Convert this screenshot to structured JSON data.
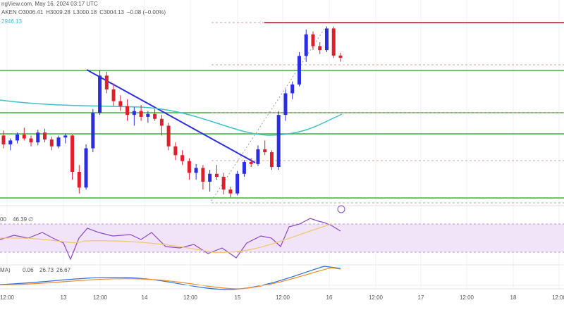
{
  "header": {
    "source": "ngView.com, May 16, 2024 03:17 UTC",
    "symbol": "AKEN",
    "ohlc": [
      "O3006.41",
      "H3009.28",
      "L3000.18",
      "C3004.13",
      "−0.08 (−0.00%)"
    ],
    "ma_label": "2946.13"
  },
  "chart_data": {
    "type": "candlestick",
    "up_color": "#2a2ee0",
    "down_color": "#e01f2a",
    "ylim": [
      2855,
      3063
    ],
    "open": [
      2925,
      2916,
      2920,
      2926,
      2922,
      2918,
      2928,
      2921,
      2914,
      2923,
      2925,
      2888,
      2872,
      2912,
      2948,
      2986,
      2972,
      2960,
      2955,
      2946,
      2950,
      2944,
      2947,
      2942,
      2935,
      2914,
      2905,
      2899,
      2887,
      2892,
      2878,
      2886,
      2883,
      2870,
      2866,
      2886,
      2898,
      2896,
      2911,
      2908,
      2893,
      2946,
      2968,
      2977,
      3006,
      3028,
      3016,
      3012,
      3034,
      3006.41
    ],
    "high": [
      2930,
      2922,
      2928,
      2933,
      2925,
      2931,
      2932,
      2924,
      2925,
      2927,
      2926,
      2895,
      2916,
      2952,
      2991,
      2990,
      2978,
      2966,
      2962,
      2954,
      2956,
      2950,
      2952,
      2946,
      2938,
      2918,
      2910,
      2902,
      2896,
      2895,
      2890,
      2895,
      2887,
      2873,
      2889,
      2900,
      2902,
      2915,
      2920,
      2910,
      2950,
      2972,
      2980,
      3010,
      3033,
      3031,
      3020,
      3036,
      3036,
      3009.28
    ],
    "low": [
      2912,
      2910,
      2917,
      2920,
      2914,
      2915,
      2918,
      2910,
      2912,
      2917,
      2880,
      2866,
      2870,
      2908,
      2946,
      2968,
      2955,
      2950,
      2940,
      2935,
      2940,
      2938,
      2940,
      2925,
      2910,
      2900,
      2895,
      2880,
      2880,
      2870,
      2868,
      2880,
      2865,
      2862,
      2864,
      2883,
      2893,
      2894,
      2905,
      2890,
      2890,
      2940,
      2962,
      2975,
      3000,
      3012,
      3008,
      3010,
      3004,
      3000.18
    ],
    "close": [
      2916,
      2920,
      2926,
      2922,
      2918,
      2928,
      2921,
      2914,
      2923,
      2925,
      2888,
      2872,
      2912,
      2948,
      2986,
      2972,
      2960,
      2955,
      2946,
      2950,
      2944,
      2947,
      2942,
      2935,
      2914,
      2905,
      2899,
      2887,
      2892,
      2878,
      2886,
      2883,
      2870,
      2866,
      2886,
      2898,
      2896,
      2911,
      2908,
      2893,
      2946,
      2968,
      2977,
      3006,
      3028,
      3016,
      3012,
      3034,
      3006.41,
      3004.13
    ]
  },
  "rsi_labels": [
    "00",
    "46.39",
    "∅"
  ],
  "macd_labels": [
    "MA)",
    "0.06",
    "26.73",
    "26.67"
  ],
  "x_axis_labels": [
    "12:00",
    "13",
    "12:00",
    "14",
    "12:00",
    "15",
    "12:00",
    "16",
    "12:00",
    "17",
    "12:00",
    "18",
    "12:00"
  ]
}
